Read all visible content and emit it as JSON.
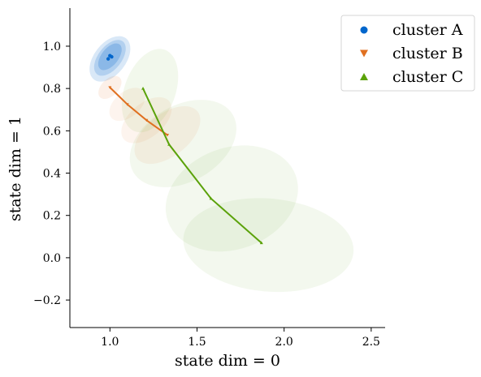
{
  "chart_data": {
    "type": "scatter",
    "title": "",
    "xlabel": "state dim = 0",
    "ylabel": "state dim = 1",
    "xlim": [
      0.77,
      2.58
    ],
    "ylim": [
      -0.33,
      1.18
    ],
    "x_ticks": [
      1.0,
      1.5,
      2.0,
      2.5
    ],
    "x_tick_labels": [
      "1.0",
      "1.5",
      "2.0",
      "2.5"
    ],
    "y_ticks": [
      -0.2,
      0.0,
      0.2,
      0.4,
      0.6,
      0.8,
      1.0
    ],
    "y_tick_labels": [
      "−0.2",
      "0.0",
      "0.2",
      "0.4",
      "0.6",
      "0.8",
      "1.0"
    ],
    "grid": false,
    "legend_position": "top-right",
    "series": [
      {
        "name": "cluster A",
        "marker": "circle",
        "color": "#0066cc",
        "x": [
          0.99,
          1.0,
          1.01
        ],
        "y": [
          0.94,
          0.955,
          0.95
        ],
        "ellipses": [
          {
            "cx": 1.0,
            "cy": 0.94,
            "rx": 0.15,
            "ry": 0.075,
            "angle_deg": 52,
            "opacity": 0.15
          },
          {
            "cx": 1.0,
            "cy": 0.945,
            "rx": 0.12,
            "ry": 0.055,
            "angle_deg": 52,
            "opacity": 0.18
          },
          {
            "cx": 1.0,
            "cy": 0.95,
            "rx": 0.09,
            "ry": 0.04,
            "angle_deg": 52,
            "opacity": 0.22
          }
        ]
      },
      {
        "name": "cluster B",
        "marker": "triangle-down",
        "color": "#e07020",
        "x": [
          1.0,
          1.1,
          1.21,
          1.33
        ],
        "y": [
          0.805,
          0.725,
          0.65,
          0.58
        ],
        "ellipses": [
          {
            "cx": 1.0,
            "cy": 0.805,
            "rx": 0.08,
            "ry": 0.04,
            "angle_deg": 45,
            "opacity": 0.1
          },
          {
            "cx": 1.1,
            "cy": 0.725,
            "rx": 0.12,
            "ry": 0.06,
            "angle_deg": 40,
            "opacity": 0.08
          },
          {
            "cx": 1.21,
            "cy": 0.65,
            "rx": 0.17,
            "ry": 0.08,
            "angle_deg": 40,
            "opacity": 0.08
          },
          {
            "cx": 1.33,
            "cy": 0.58,
            "rx": 0.22,
            "ry": 0.1,
            "angle_deg": 38,
            "opacity": 0.08
          }
        ]
      },
      {
        "name": "cluster C",
        "marker": "triangle-up",
        "color": "#5ba20a",
        "x": [
          1.19,
          1.34,
          1.58,
          1.87
        ],
        "y": [
          0.8,
          0.535,
          0.28,
          0.07
        ],
        "ellipses": [
          {
            "cx": 1.23,
            "cy": 0.79,
            "rx": 0.25,
            "ry": 0.12,
            "angle_deg": 70,
            "opacity": 0.08
          },
          {
            "cx": 1.42,
            "cy": 0.54,
            "rx": 0.33,
            "ry": 0.18,
            "angle_deg": 30,
            "opacity": 0.07
          },
          {
            "cx": 1.7,
            "cy": 0.28,
            "rx": 0.39,
            "ry": 0.24,
            "angle_deg": 20,
            "opacity": 0.07
          },
          {
            "cx": 1.91,
            "cy": 0.06,
            "rx": 0.49,
            "ry": 0.22,
            "angle_deg": -5,
            "opacity": 0.07
          }
        ]
      }
    ]
  }
}
